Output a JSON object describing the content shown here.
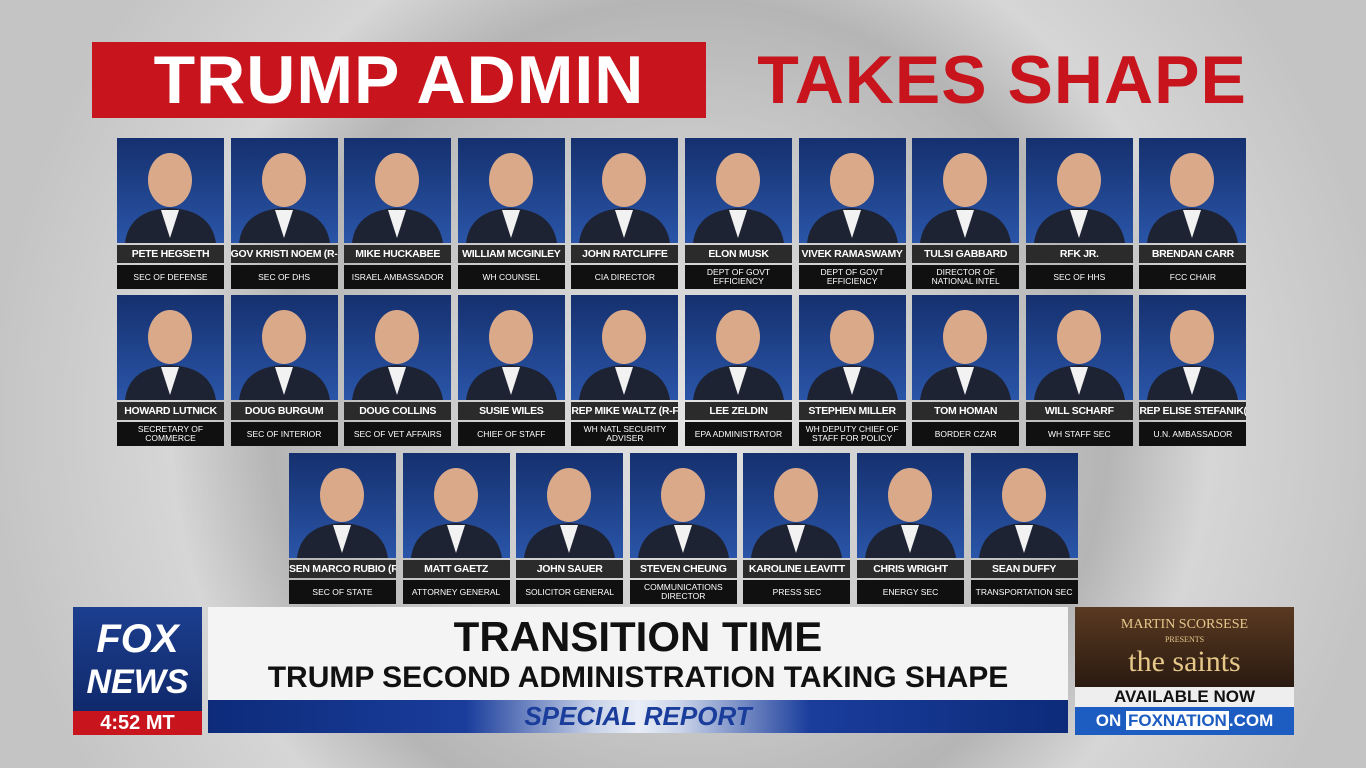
{
  "header": {
    "title_left": "TRUMP ADMIN",
    "title_right": "TAKES SHAPE"
  },
  "rows": [
    [
      {
        "name": "PETE HEGSETH",
        "role": "SEC OF DEFENSE"
      },
      {
        "name": "GOV KRISTI NOEM (R-SD)",
        "role": "SEC OF DHS"
      },
      {
        "name": "MIKE HUCKABEE",
        "role": "ISRAEL AMBASSADOR"
      },
      {
        "name": "WILLIAM MCGINLEY",
        "role": "WH COUNSEL"
      },
      {
        "name": "JOHN RATCLIFFE",
        "role": "CIA DIRECTOR"
      },
      {
        "name": "ELON MUSK",
        "role": "DEPT OF GOVT EFFICIENCY"
      },
      {
        "name": "VIVEK RAMASWAMY",
        "role": "DEPT OF GOVT EFFICIENCY"
      },
      {
        "name": "TULSI GABBARD",
        "role": "DIRECTOR OF NATIONAL INTEL"
      },
      {
        "name": "RFK JR.",
        "role": "SEC OF HHS"
      },
      {
        "name": "BRENDAN CARR",
        "role": "FCC CHAIR"
      }
    ],
    [
      {
        "name": "HOWARD LUTNICK",
        "role": "SECRETARY OF COMMERCE"
      },
      {
        "name": "DOUG BURGUM",
        "role": "SEC OF INTERIOR"
      },
      {
        "name": "DOUG COLLINS",
        "role": "SEC OF VET AFFAIRS"
      },
      {
        "name": "SUSIE WILES",
        "role": "CHIEF OF STAFF"
      },
      {
        "name": "REP MIKE WALTZ (R-FL)",
        "role": "WH NATL SECURITY ADVISER"
      },
      {
        "name": "LEE ZELDIN",
        "role": "EPA ADMINISTRATOR"
      },
      {
        "name": "STEPHEN MILLER",
        "role": "WH DEPUTY CHIEF OF STAFF FOR POLICY"
      },
      {
        "name": "TOM HOMAN",
        "role": "BORDER CZAR"
      },
      {
        "name": "WILL SCHARF",
        "role": "WH STAFF SEC"
      },
      {
        "name": "REP ELISE STEFANIK(R-NY)",
        "role": "U.N. AMBASSADOR"
      }
    ],
    [
      {
        "name": "SEN MARCO RUBIO (R-FL)",
        "role": "SEC OF STATE"
      },
      {
        "name": "MATT GAETZ",
        "role": "ATTORNEY GENERAL"
      },
      {
        "name": "JOHN SAUER",
        "role": "SOLICITOR GENERAL"
      },
      {
        "name": "STEVEN CHEUNG",
        "role": "COMMUNICATIONS DIRECTOR"
      },
      {
        "name": "KAROLINE LEAVITT",
        "role": "PRESS SEC"
      },
      {
        "name": "CHRIS WRIGHT",
        "role": "ENERGY SEC"
      },
      {
        "name": "SEAN DUFFY",
        "role": "TRANSPORTATION SEC"
      }
    ]
  ],
  "lower_third": {
    "logo_top": "FOX",
    "logo_bottom": "NEWS",
    "time": "4:52 MT",
    "headline": "TRANSITION TIME",
    "subheadline": "TRUMP SECOND ADMINISTRATION TAKING SHAPE",
    "banner": "SPECIAL REPORT"
  },
  "ad": {
    "presenter": "MARTIN SCORSESE",
    "presents": "PRESENTS",
    "title": "the saints",
    "availability": "AVAILABLE NOW",
    "on": "ON",
    "brand": "FOXNATION",
    "domain": ".COM"
  }
}
